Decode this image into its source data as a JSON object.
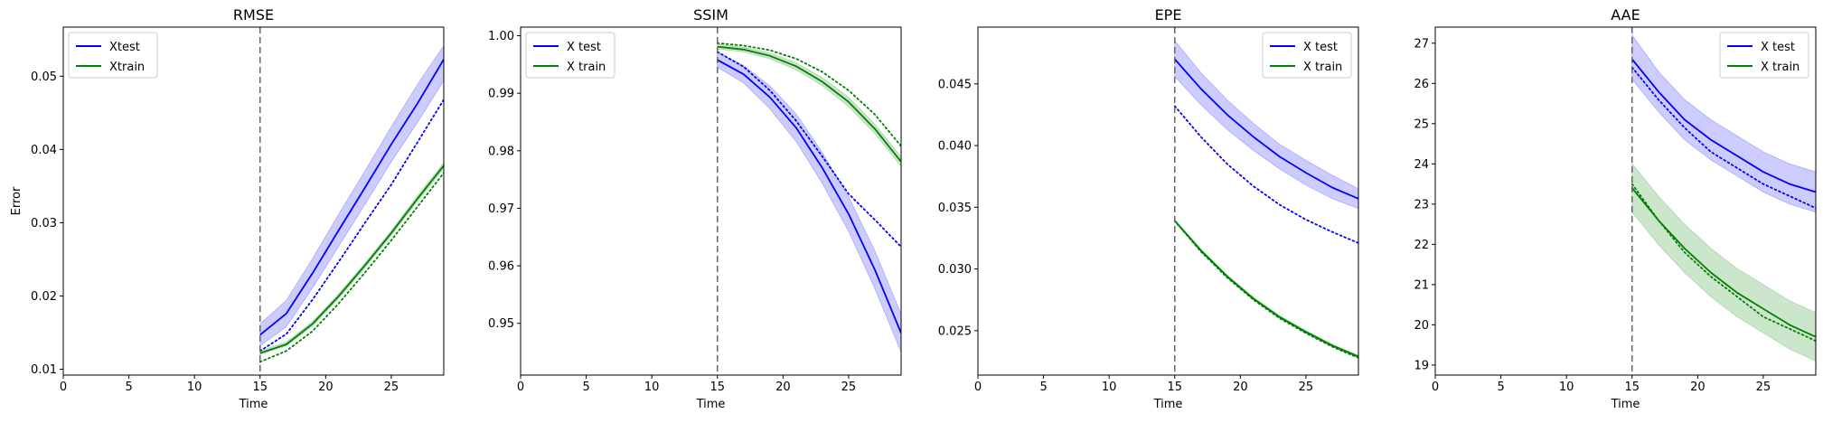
{
  "chart_data": [
    {
      "type": "line",
      "title": "RMSE",
      "xlabel": "Time",
      "ylabel": "Error",
      "xlim": [
        0,
        29
      ],
      "ylim": [
        0.0092,
        0.0567
      ],
      "xticks": [
        0,
        5,
        10,
        15,
        20,
        25
      ],
      "yticks": [
        0.01,
        0.02,
        0.03,
        0.04,
        0.05
      ],
      "ytick_labels": [
        "0.01",
        "0.02",
        "0.03",
        "0.04",
        "0.05"
      ],
      "vline_x": 15,
      "legend_loc": "upper left",
      "legend": [
        "Xtest",
        "Xtrain"
      ],
      "series": [
        {
          "name": "Xtest",
          "color": "#0000ff",
          "style": "solid",
          "band": true,
          "x": [
            15,
            17,
            19,
            21,
            23,
            25,
            27,
            29
          ],
          "y": [
            0.0147,
            0.0176,
            0.0231,
            0.029,
            0.0348,
            0.0407,
            0.0463,
            0.0523
          ],
          "lower": [
            0.0132,
            0.0158,
            0.0211,
            0.0268,
            0.0325,
            0.0383,
            0.0437,
            0.0494
          ],
          "upper": [
            0.0162,
            0.0194,
            0.0251,
            0.0312,
            0.0371,
            0.0431,
            0.0489,
            0.0542
          ]
        },
        {
          "name": "Xtrain",
          "color": "#008000",
          "style": "solid",
          "band": true,
          "x": [
            15,
            17,
            19,
            21,
            23,
            25,
            27,
            29
          ],
          "y": [
            0.0122,
            0.0134,
            0.0162,
            0.02,
            0.0242,
            0.0286,
            0.0333,
            0.0378
          ],
          "lower": [
            0.012,
            0.0132,
            0.0159,
            0.0197,
            0.0239,
            0.0283,
            0.0329,
            0.0374
          ],
          "upper": [
            0.0125,
            0.0137,
            0.0165,
            0.0203,
            0.0245,
            0.0289,
            0.0337,
            0.0382
          ]
        },
        {
          "color": "#0000ff",
          "style": "dotted",
          "x": [
            15,
            17,
            19,
            21,
            23,
            25,
            27,
            29
          ],
          "y": [
            0.0125,
            0.0148,
            0.0195,
            0.0247,
            0.03,
            0.0352,
            0.041,
            0.0468
          ]
        },
        {
          "color": "#008000",
          "style": "dotted",
          "x": [
            15,
            17,
            19,
            21,
            23,
            25,
            27,
            29
          ],
          "y": [
            0.011,
            0.0125,
            0.0152,
            0.019,
            0.0232,
            0.0276,
            0.0322,
            0.0368
          ]
        }
      ]
    },
    {
      "type": "line",
      "title": "SSIM",
      "xlabel": "Time",
      "ylabel": "",
      "xlim": [
        0,
        29
      ],
      "ylim": [
        0.941,
        1.0015
      ],
      "xticks": [
        0,
        5,
        10,
        15,
        20,
        25
      ],
      "yticks": [
        0.95,
        0.96,
        0.97,
        0.98,
        0.99,
        1.0
      ],
      "ytick_labels": [
        "0.95",
        "0.96",
        "0.97",
        "0.98",
        "0.99",
        "1.00"
      ],
      "vline_x": 15,
      "legend_loc": "upper left",
      "legend": [
        "X test",
        "X train"
      ],
      "series": [
        {
          "name": "X test",
          "color": "#0000ff",
          "style": "solid",
          "band": true,
          "x": [
            15,
            17,
            19,
            21,
            23,
            25,
            27,
            29
          ],
          "y": [
            0.9958,
            0.9933,
            0.9893,
            0.984,
            0.977,
            0.969,
            0.9593,
            0.9483
          ],
          "lower": [
            0.9945,
            0.9918,
            0.9873,
            0.9816,
            0.9743,
            0.966,
            0.956,
            0.945
          ],
          "upper": [
            0.9971,
            0.9948,
            0.9913,
            0.9864,
            0.9797,
            0.972,
            0.9626,
            0.9516
          ]
        },
        {
          "name": "X train",
          "color": "#008000",
          "style": "solid",
          "band": true,
          "x": [
            15,
            17,
            19,
            21,
            23,
            25,
            27,
            29
          ],
          "y": [
            0.9981,
            0.9976,
            0.9965,
            0.9947,
            0.992,
            0.9885,
            0.9838,
            0.9781
          ],
          "lower": [
            0.9977,
            0.9972,
            0.996,
            0.9941,
            0.9913,
            0.9877,
            0.983,
            0.9773
          ],
          "upper": [
            0.9985,
            0.998,
            0.997,
            0.9953,
            0.9927,
            0.9893,
            0.9846,
            0.9789
          ]
        },
        {
          "color": "#0000ff",
          "style": "dotted",
          "x": [
            15,
            17,
            19,
            21,
            23,
            25,
            27,
            29
          ],
          "y": [
            0.9972,
            0.9946,
            0.9905,
            0.9852,
            0.979,
            0.9725,
            0.968,
            0.9633
          ]
        },
        {
          "color": "#008000",
          "style": "dotted",
          "x": [
            15,
            17,
            19,
            21,
            23,
            25,
            27,
            29
          ],
          "y": [
            0.9987,
            0.9983,
            0.9975,
            0.996,
            0.9937,
            0.9905,
            0.9863,
            0.9808
          ]
        }
      ]
    },
    {
      "type": "line",
      "title": "EPE",
      "xlabel": "Time",
      "ylabel": "",
      "xlim": [
        0,
        29
      ],
      "ylim": [
        0.0214,
        0.0496
      ],
      "xticks": [
        0,
        5,
        10,
        15,
        20,
        25
      ],
      "yticks": [
        0.025,
        0.03,
        0.035,
        0.04,
        0.045
      ],
      "ytick_labels": [
        "0.025",
        "0.030",
        "0.035",
        "0.040",
        "0.045"
      ],
      "vline_x": 15,
      "legend_loc": "upper right",
      "legend": [
        "X test",
        "X train"
      ],
      "series": [
        {
          "name": "X test",
          "color": "#0000ff",
          "style": "solid",
          "band": true,
          "x": [
            15,
            17,
            19,
            21,
            23,
            25,
            27,
            29
          ],
          "y": [
            0.047,
            0.0446,
            0.0425,
            0.0407,
            0.0391,
            0.0378,
            0.0366,
            0.0357
          ],
          "lower": [
            0.0456,
            0.0433,
            0.0413,
            0.0396,
            0.0381,
            0.0368,
            0.0357,
            0.0349
          ],
          "upper": [
            0.0485,
            0.0459,
            0.0437,
            0.0418,
            0.0401,
            0.0388,
            0.0376,
            0.0365
          ]
        },
        {
          "name": "X train",
          "color": "#008000",
          "style": "solid",
          "band": true,
          "x": [
            15,
            17,
            19,
            21,
            23,
            25,
            27,
            29
          ],
          "y": [
            0.0339,
            0.0315,
            0.0294,
            0.0276,
            0.0261,
            0.0249,
            0.0238,
            0.0229
          ],
          "lower": [
            0.0338,
            0.0314,
            0.0293,
            0.0275,
            0.026,
            0.0248,
            0.0237,
            0.0228
          ],
          "upper": [
            0.034,
            0.0316,
            0.0295,
            0.0277,
            0.0262,
            0.025,
            0.0239,
            0.023
          ]
        },
        {
          "color": "#0000ff",
          "style": "dotted",
          "x": [
            15,
            17,
            19,
            21,
            23,
            25,
            27,
            29
          ],
          "y": [
            0.0432,
            0.0407,
            0.0385,
            0.0367,
            0.0352,
            0.034,
            0.033,
            0.0321
          ]
        },
        {
          "color": "#008000",
          "style": "dotted",
          "x": [
            15,
            17,
            19,
            21,
            23,
            25,
            27,
            29
          ],
          "y": [
            0.0339,
            0.0314,
            0.0293,
            0.0275,
            0.026,
            0.0248,
            0.0237,
            0.0228
          ]
        }
      ]
    },
    {
      "type": "line",
      "title": "AAE",
      "xlabel": "Time",
      "ylabel": "",
      "xlim": [
        0,
        29
      ],
      "ylim": [
        18.75,
        27.4
      ],
      "xticks": [
        0,
        5,
        10,
        15,
        20,
        25
      ],
      "yticks": [
        19,
        20,
        21,
        22,
        23,
        24,
        25,
        26,
        27
      ],
      "ytick_labels": [
        "19",
        "20",
        "21",
        "22",
        "23",
        "24",
        "25",
        "26",
        "27"
      ],
      "vline_x": 15,
      "legend_loc": "upper right",
      "legend": [
        "X test",
        "X train"
      ],
      "series": [
        {
          "name": "X test",
          "color": "#0000ff",
          "style": "solid",
          "band": true,
          "x": [
            15,
            17,
            19,
            21,
            23,
            25,
            27,
            29
          ],
          "y": [
            26.6,
            25.8,
            25.1,
            24.6,
            24.2,
            23.8,
            23.5,
            23.3
          ],
          "lower": [
            26.1,
            25.3,
            24.6,
            24.1,
            23.7,
            23.3,
            23.0,
            22.8
          ],
          "upper": [
            27.2,
            26.3,
            25.6,
            25.1,
            24.7,
            24.3,
            24.0,
            23.8
          ]
        },
        {
          "name": "X train",
          "color": "#008000",
          "style": "solid",
          "band": true,
          "x": [
            15,
            17,
            19,
            21,
            23,
            25,
            27,
            29
          ],
          "y": [
            23.4,
            22.6,
            21.9,
            21.3,
            20.8,
            20.4,
            20.0,
            19.7
          ],
          "lower": [
            22.8,
            22.0,
            21.3,
            20.7,
            20.2,
            19.8,
            19.4,
            19.1
          ],
          "upper": [
            24.0,
            23.2,
            22.5,
            21.9,
            21.4,
            21.0,
            20.6,
            20.3
          ]
        },
        {
          "color": "#0000ff",
          "style": "dotted",
          "x": [
            15,
            17,
            19,
            21,
            23,
            25,
            27,
            29
          ],
          "y": [
            26.4,
            25.6,
            24.9,
            24.3,
            23.9,
            23.5,
            23.2,
            22.9
          ]
        },
        {
          "color": "#008000",
          "style": "dotted",
          "x": [
            15,
            17,
            19,
            21,
            23,
            25,
            27,
            29
          ],
          "y": [
            23.5,
            22.6,
            21.8,
            21.2,
            20.7,
            20.2,
            19.9,
            19.6
          ]
        }
      ]
    }
  ]
}
